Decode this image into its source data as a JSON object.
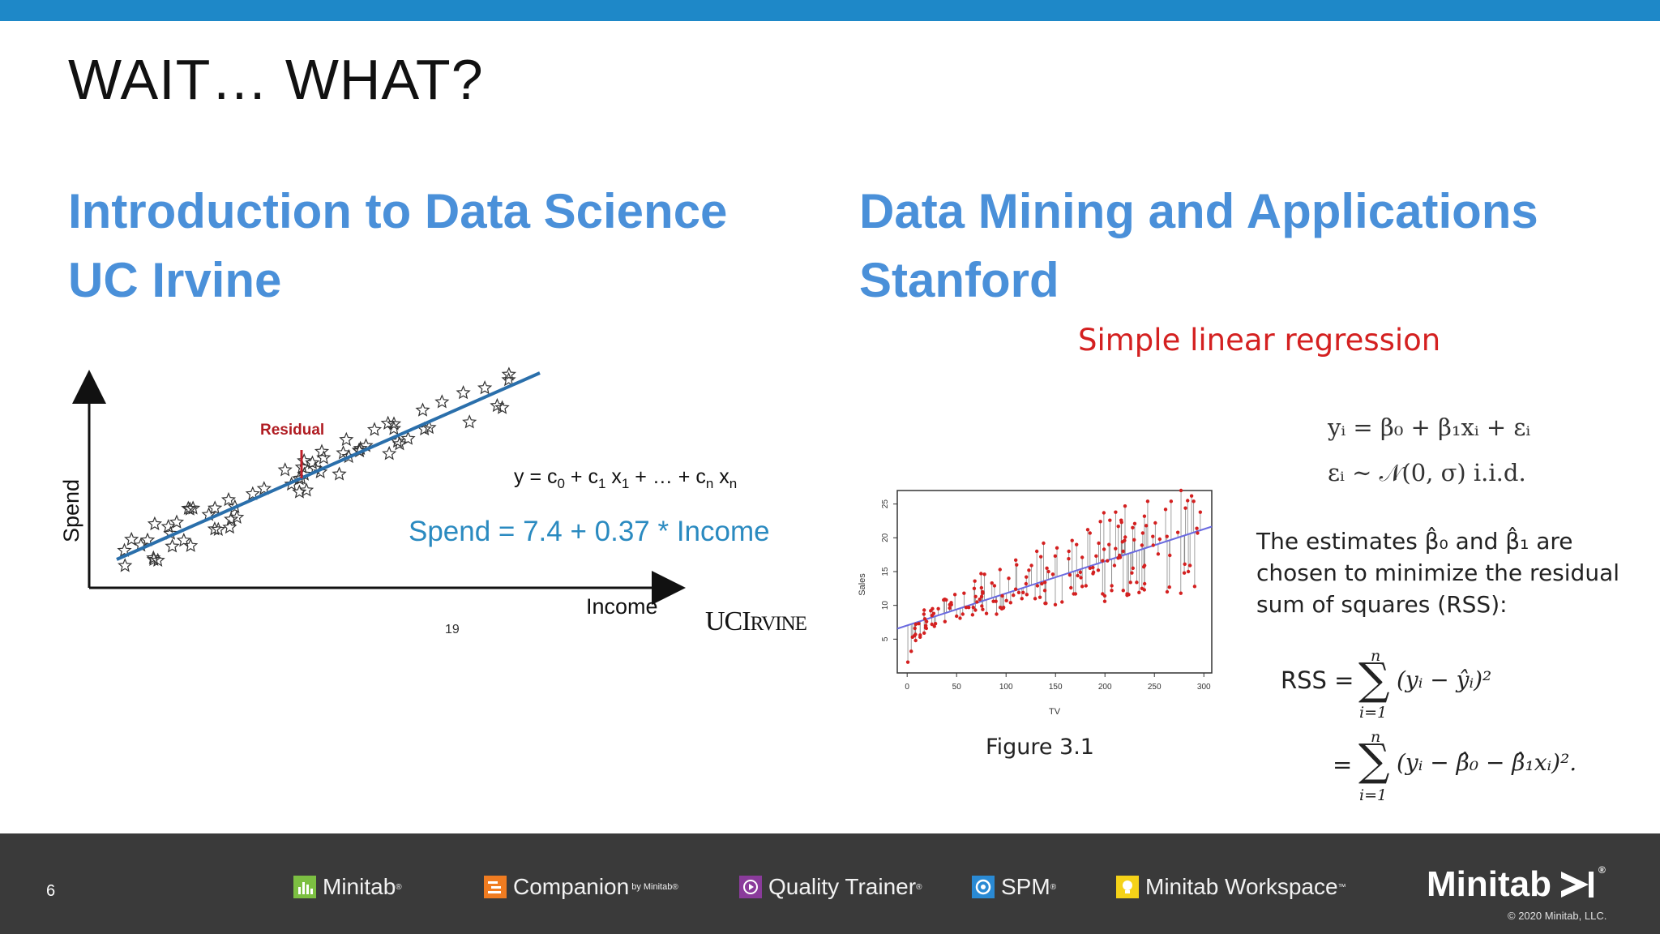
{
  "slide": {
    "title": "WAIT… WHAT?",
    "page_number": "6"
  },
  "left": {
    "heading_line1": "Introduction to Data Science",
    "heading_line2": "UC Irvine",
    "y_label": "Spend",
    "x_label": "Income",
    "residual_label": "Residual",
    "general_equation": {
      "y": "y = c",
      "s0": "0",
      "p1": " + c",
      "s1": "1",
      "p2": " x",
      "s2": "1",
      "p3": " + … + c",
      "s3": "n",
      "p4": " x",
      "s4": "n"
    },
    "spend_equation": "Spend = 7.4 + 0.37 * Income",
    "logo": "UCI",
    "logo_small": "RVINE",
    "page_ref": "19"
  },
  "right": {
    "heading_line1": "Data Mining and Applications",
    "heading_line2": "Stanford",
    "slr_title": "Simple linear regression",
    "estimates_line1": "The estimates β̂₀ and β̂₁ are",
    "estimates_line2": "chosen to minimize the residual",
    "estimates_line3": "sum of squares (RSS):",
    "rss_label": "RSS =",
    "rss_expr1": "(yᵢ − ŷᵢ)²",
    "rss_expr2": "(yᵢ − β̂₀ − β̂₁xᵢ)².",
    "sum_upper": "n",
    "sum_lower": "i=1",
    "eq1": "yᵢ = β₀ + β₁xᵢ + εᵢ",
    "eq2": "εᵢ ∼ 𝒩(0, σ)   i.i.d.",
    "figure_caption": "Figure 3.1"
  },
  "chart_data": [
    {
      "type": "scatter",
      "title": "",
      "xlabel": "Income",
      "ylabel": "Spend",
      "grid": false,
      "legend": "none",
      "annotations": [
        "Residual",
        "Spend = 7.4 + 0.37 * Income"
      ],
      "marker": "star",
      "fit_line": true
    },
    {
      "type": "scatter",
      "title": "",
      "xlabel": "TV",
      "ylabel": "Sales",
      "xlim": [
        0,
        300
      ],
      "ylim": [
        0,
        27
      ],
      "xticks": [
        0,
        50,
        100,
        150,
        200,
        250,
        300
      ],
      "yticks": [
        5,
        10,
        15,
        20,
        25
      ],
      "fit": {
        "intercept": 7.03,
        "slope": 0.0475
      },
      "residual_lines": true,
      "x": [
        230.1,
        44.5,
        17.2,
        151.5,
        180.8,
        8.7,
        57.5,
        120.2,
        8.6,
        199.8,
        66.1,
        214.7,
        23.8,
        97.5,
        204.1,
        195.4,
        67.8,
        281.4,
        69.2,
        147.3,
        218.4,
        237.4,
        13.2,
        228.3,
        62.3,
        262.9,
        142.9,
        240.1,
        248.8,
        70.6,
        292.9,
        112.9,
        97.2,
        265.6,
        95.7,
        290.7,
        266.9,
        74.7,
        43.1,
        228.0,
        202.5,
        177.0,
        293.6,
        206.9,
        25.1,
        175.1,
        89.7,
        239.9,
        227.2,
        66.9,
        199.8,
        100.4,
        216.4,
        182.6,
        262.7,
        198.9,
        7.3,
        136.2,
        210.8,
        210.7,
        53.5,
        261.3,
        239.3,
        102.7,
        131.1,
        69.0,
        31.5,
        139.3,
        237.4,
        216.8,
        199.1,
        109.8,
        26.8,
        129.4,
        213.4,
        16.9,
        27.5,
        120.5,
        5.4,
        116.0,
        76.4,
        239.8,
        75.3,
        68.4,
        213.5,
        193.2,
        76.3,
        110.7,
        88.3,
        109.8,
        134.3,
        28.6,
        217.7,
        250.9,
        107.4,
        163.3,
        197.6,
        184.9,
        289.7,
        135.2,
        222.4,
        296.4,
        280.2,
        187.9,
        238.2,
        137.9,
        25.0,
        90.4,
        13.1,
        255.4,
        225.8,
        241.7,
        175.7,
        209.6,
        78.2,
        75.1,
        139.2,
        76.4,
        125.7,
        19.4,
        141.3,
        18.8,
        224.0,
        123.1,
        229.5,
        87.2,
        7.8,
        80.2,
        220.3,
        59.6,
        0.7,
        265.2,
        8.4,
        219.8,
        36.9,
        48.3,
        25.6,
        273.7,
        43.0,
        184.9,
        73.4,
        193.7,
        220.5,
        104.6,
        96.2,
        140.3,
        240.1,
        243.2,
        38.0,
        44.7,
        280.7,
        121.0,
        197.6,
        171.3,
        187.8,
        4.1,
        93.9,
        149.8,
        11.7,
        131.7,
        172.5,
        85.7,
        188.4,
        163.5,
        117.2,
        234.5,
        17.9,
        206.8,
        215.4,
        284.3,
        50.0,
        164.5,
        19.6,
        168.4,
        222.4,
        276.9,
        248.4,
        170.2,
        276.7,
        165.6,
        156.6,
        218.5,
        56.2,
        287.6,
        253.8,
        205.0,
        139.5,
        191.1,
        286.0,
        18.7,
        39.5,
        75.5,
        17.2,
        166.8,
        149.7,
        38.2,
        94.2,
        177.0,
        283.6,
        232.1
      ],
      "y": [
        22.1,
        10.4,
        9.3,
        18.5,
        12.9,
        7.2,
        11.8,
        13.2,
        4.8,
        10.6,
        8.6,
        17.4,
        9.2,
        9.7,
        19.0,
        22.4,
        12.5,
        24.4,
        11.3,
        14.6,
        18.0,
        12.5,
        5.6,
        15.5,
        9.7,
        12.0,
        15.0,
        15.9,
        18.9,
        10.5,
        21.4,
        11.9,
        9.6,
        17.4,
        9.5,
        12.8,
        25.4,
        14.7,
        10.1,
        21.5,
        16.6,
        17.1,
        20.7,
        12.9,
        8.5,
        14.9,
        10.6,
        23.2,
        14.8,
        9.7,
        11.4,
        10.7,
        22.6,
        21.2,
        20.2,
        23.7,
        5.5,
        13.2,
        23.8,
        18.4,
        8.1,
        24.2,
        15.7,
        14.0,
        18.0,
        9.3,
        9.5,
        13.4,
        18.9,
        22.3,
        18.3,
        12.4,
        8.8,
        11.0,
        17.0,
        8.7,
        6.9,
        14.2,
        5.3,
        11.0,
        11.8,
        12.3,
        11.3,
        13.6,
        21.7,
        15.2,
        12.0,
        16.0,
        12.9,
        16.7,
        11.2,
        7.3,
        19.4,
        22.2,
        11.5,
        16.9,
        11.7,
        15.5,
        25.4,
        17.2,
        11.7,
        23.8,
        14.8,
        14.7,
        20.7,
        19.2,
        7.2,
        8.7,
        5.3,
        19.8,
        13.4,
        21.8,
        14.1,
        15.9,
        14.6,
        12.6,
        12.2,
        9.4,
        15.9,
        6.6,
        15.5,
        7.0,
        11.6,
        15.2,
        19.7,
        10.6,
        6.6,
        8.8,
        24.7,
        9.7,
        1.6,
        12.7,
        5.7,
        19.6,
        10.8,
        11.6,
        9.5,
        20.8,
        9.6,
        20.7,
        10.9,
        19.2,
        20.1,
        10.4,
        11.4,
        10.3,
        13.2,
        25.4,
        10.9,
        10.1,
        16.1,
        11.6,
        16.6,
        19.0,
        15.6,
        3.2,
        15.3,
        10.1,
        7.3,
        12.9,
        14.4,
        13.3,
        14.9,
        18.0,
        11.9,
        11.9,
        8.0,
        12.2,
        17.1,
        15.0,
        8.4,
        14.5,
        7.6,
        11.7,
        11.5,
        27.0,
        20.2,
        11.7,
        11.8,
        12.6,
        10.5,
        12.2,
        8.7,
        26.2,
        17.6,
        22.6,
        10.3,
        17.3,
        15.9,
        6.7,
        10.8,
        9.9,
        5.9,
        19.6,
        17.3,
        7.6,
        9.7,
        12.8,
        25.5,
        13.4
      ]
    }
  ],
  "footer": {
    "products": [
      {
        "name": "Minitab",
        "reg": "®",
        "color": "#7cbf42"
      },
      {
        "name": "Companion",
        "by": "by Minitab",
        "reg": "®",
        "color": "#f07c21"
      },
      {
        "name": "Quality Trainer",
        "reg": "®",
        "color": "#8a3b9b"
      },
      {
        "name": "SPM",
        "reg": "®",
        "color": "#2a8ad4"
      },
      {
        "name": "Minitab Workspace",
        "reg": "™",
        "color": "#f5d218"
      }
    ],
    "brand": "Minitab",
    "brand_reg": "®",
    "copyright": "© 2020 Minitab, LLC."
  }
}
